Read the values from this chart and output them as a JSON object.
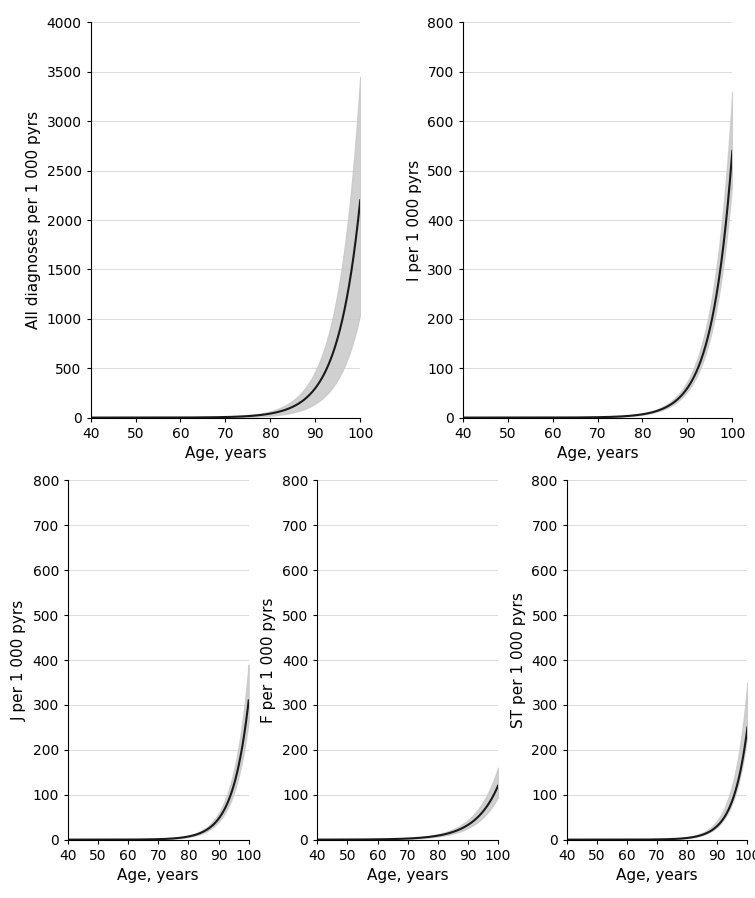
{
  "panels": [
    {
      "ylabel": "All diagnoses per 1 000 pyrs",
      "xlabel": "Age, years",
      "ylim": [
        0,
        4000
      ],
      "yticks": [
        0,
        500,
        1000,
        1500,
        2000,
        2500,
        3000,
        3500,
        4000
      ],
      "curve_type": "steep_exp",
      "main_at_100": 2200,
      "upper_at_100": 3450,
      "lower_at_100": 1050,
      "steepness": 0.2,
      "inflect": 83
    },
    {
      "ylabel": "I per 1 000 pyrs",
      "xlabel": "Age, years",
      "ylim": [
        0,
        800
      ],
      "yticks": [
        0,
        100,
        200,
        300,
        400,
        500,
        600,
        700,
        800
      ],
      "curve_type": "steep_exp",
      "main_at_100": 540,
      "upper_at_100": 660,
      "lower_at_100": 480,
      "steepness": 0.22,
      "inflect": 84
    },
    {
      "ylabel": "J per 1 000 pyrs",
      "xlabel": "Age, years",
      "ylim": [
        0,
        800
      ],
      "yticks": [
        0,
        100,
        200,
        300,
        400,
        500,
        600,
        700,
        800
      ],
      "curve_type": "steep_exp",
      "main_at_100": 310,
      "upper_at_100": 390,
      "lower_at_100": 265,
      "steepness": 0.19,
      "inflect": 84
    },
    {
      "ylabel": "F per 1 000 pyrs",
      "xlabel": "Age, years",
      "ylim": [
        0,
        800
      ],
      "yticks": [
        0,
        100,
        200,
        300,
        400,
        500,
        600,
        700,
        800
      ],
      "curve_type": "flat_exp",
      "main_at_100": 120,
      "upper_at_100": 160,
      "lower_at_100": 95,
      "steepness": 0.13,
      "inflect": 86
    },
    {
      "ylabel": "ST per 1 000 pyrs",
      "xlabel": "Age, years",
      "ylim": [
        0,
        800
      ],
      "yticks": [
        0,
        100,
        200,
        300,
        400,
        500,
        600,
        700,
        800
      ],
      "curve_type": "steep_exp",
      "main_at_100": 250,
      "upper_at_100": 350,
      "lower_at_100": 235,
      "steepness": 0.21,
      "inflect": 86
    }
  ],
  "age_min": 40,
  "age_max": 100,
  "xticks": [
    40,
    50,
    60,
    70,
    80,
    90,
    100
  ],
  "line_color": "#1a1a1a",
  "ci_color": "#c8c8c8",
  "ci_alpha": 0.85,
  "background_color": "#ffffff",
  "grid_color": "#cccccc",
  "grid_linewidth": 0.5,
  "line_linewidth": 1.5,
  "font_size": 11,
  "label_fontsize": 11,
  "tick_fontsize": 10
}
